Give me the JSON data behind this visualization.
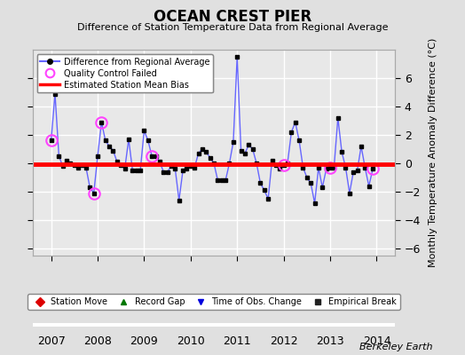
{
  "title": "OCEAN CREST PIER",
  "subtitle": "Difference of Station Temperature Data from Regional Average",
  "ylabel": "Monthly Temperature Anomaly Difference (°C)",
  "bias": -0.05,
  "ylim": [
    -6.5,
    8.0
  ],
  "yticks": [
    -6,
    -4,
    -2,
    0,
    2,
    4,
    6
  ],
  "xlim": [
    2006.6,
    2014.4
  ],
  "xticks": [
    2007,
    2008,
    2009,
    2010,
    2011,
    2012,
    2013,
    2014
  ],
  "bg_color": "#e0e0e0",
  "plot_bg_color": "#e8e8e8",
  "grid_color": "#ffffff",
  "watermark": "Berkeley Earth",
  "line_color": "#6666ff",
  "marker_color": "#000000",
  "bias_color": "#ff0000",
  "qc_color": "#ff44ff",
  "times": [
    2007.0,
    2007.083,
    2007.167,
    2007.25,
    2007.333,
    2007.417,
    2007.5,
    2007.583,
    2007.667,
    2007.75,
    2007.833,
    2007.917,
    2008.0,
    2008.083,
    2008.167,
    2008.25,
    2008.333,
    2008.417,
    2008.5,
    2008.583,
    2008.667,
    2008.75,
    2008.833,
    2008.917,
    2009.0,
    2009.083,
    2009.167,
    2009.25,
    2009.333,
    2009.417,
    2009.5,
    2009.583,
    2009.667,
    2009.75,
    2009.833,
    2009.917,
    2010.0,
    2010.083,
    2010.167,
    2010.25,
    2010.333,
    2010.417,
    2010.5,
    2010.583,
    2010.667,
    2010.75,
    2010.833,
    2010.917,
    2011.0,
    2011.083,
    2011.167,
    2011.25,
    2011.333,
    2011.417,
    2011.5,
    2011.583,
    2011.667,
    2011.75,
    2011.833,
    2011.917,
    2012.0,
    2012.083,
    2012.167,
    2012.25,
    2012.333,
    2012.417,
    2012.5,
    2012.583,
    2012.667,
    2012.75,
    2012.833,
    2012.917,
    2013.0,
    2013.083,
    2013.167,
    2013.25,
    2013.333,
    2013.417,
    2013.5,
    2013.583,
    2013.667,
    2013.75,
    2013.833,
    2013.917
  ],
  "values": [
    1.6,
    4.9,
    0.5,
    -0.2,
    0.2,
    0.0,
    -0.1,
    -0.3,
    -0.1,
    -0.3,
    -1.7,
    -2.1,
    0.5,
    2.9,
    1.6,
    1.2,
    0.9,
    0.1,
    -0.1,
    -0.4,
    1.7,
    -0.5,
    -0.5,
    -0.5,
    2.3,
    1.6,
    0.5,
    0.5,
    0.1,
    -0.6,
    -0.6,
    -0.2,
    -0.4,
    -2.6,
    -0.5,
    -0.4,
    -0.2,
    -0.3,
    0.7,
    1.0,
    0.8,
    0.4,
    0.0,
    -1.2,
    -1.2,
    -1.2,
    0.0,
    1.5,
    7.5,
    0.9,
    0.7,
    1.3,
    1.0,
    0.0,
    -1.4,
    -1.9,
    -2.5,
    0.2,
    -0.1,
    -0.4,
    -0.1,
    0.0,
    2.2,
    2.9,
    1.6,
    -0.3,
    -1.0,
    -1.4,
    -2.8,
    -0.3,
    -1.7,
    -0.4,
    -0.3,
    -0.3,
    3.2,
    0.8,
    -0.3,
    -2.1,
    -0.6,
    -0.5,
    1.2,
    -0.3,
    -1.6,
    -0.4
  ],
  "qc_failed_indices": [
    0,
    11,
    13,
    26,
    60,
    72,
    83
  ],
  "legend2_items": [
    {
      "label": "Station Move",
      "color": "#dd0000",
      "marker": "D"
    },
    {
      "label": "Record Gap",
      "color": "#007700",
      "marker": "^"
    },
    {
      "label": "Time of Obs. Change",
      "color": "#0000dd",
      "marker": "v"
    },
    {
      "label": "Empirical Break",
      "color": "#222222",
      "marker": "s"
    }
  ]
}
